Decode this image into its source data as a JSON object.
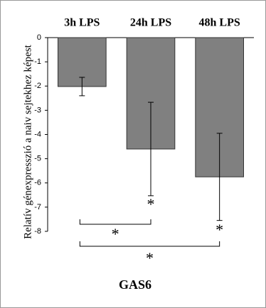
{
  "chart_data": {
    "type": "bar",
    "categories": [
      "3h LPS",
      "24h LPS",
      "48h LPS"
    ],
    "values": [
      -2.02,
      -4.6,
      -5.75
    ],
    "errors": [
      0.38,
      1.93,
      1.8
    ],
    "color": "#808080",
    "ylabel": "Relatív génexpresszió a naiv sejtekhez képest",
    "xlabel": "GAS6",
    "ylim": [
      -8,
      0
    ],
    "yticks": [
      0,
      -1,
      -2,
      -3,
      -4,
      -5,
      -6,
      -7,
      -8
    ],
    "annotations": [
      "*",
      "*",
      "*",
      "*"
    ]
  }
}
